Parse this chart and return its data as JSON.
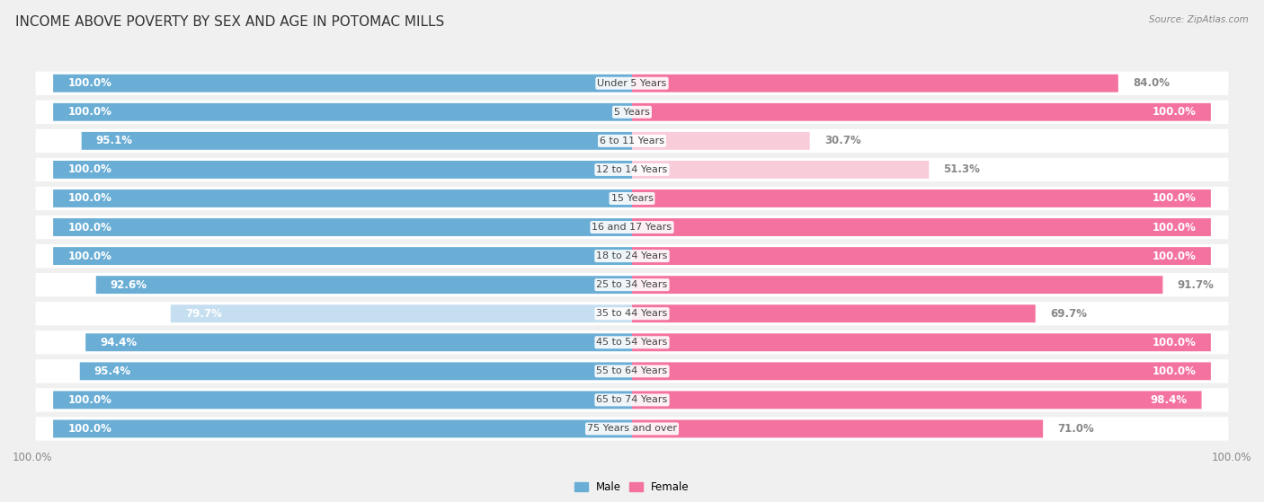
{
  "title": "INCOME ABOVE POVERTY BY SEX AND AGE IN POTOMAC MILLS",
  "source": "Source: ZipAtlas.com",
  "categories": [
    "Under 5 Years",
    "5 Years",
    "6 to 11 Years",
    "12 to 14 Years",
    "15 Years",
    "16 and 17 Years",
    "18 to 24 Years",
    "25 to 34 Years",
    "35 to 44 Years",
    "45 to 54 Years",
    "55 to 64 Years",
    "65 to 74 Years",
    "75 Years and over"
  ],
  "male": [
    100.0,
    100.0,
    95.1,
    100.0,
    100.0,
    100.0,
    100.0,
    92.6,
    79.7,
    94.4,
    95.4,
    100.0,
    100.0
  ],
  "female": [
    84.0,
    100.0,
    30.7,
    51.3,
    100.0,
    100.0,
    100.0,
    91.7,
    69.7,
    100.0,
    100.0,
    98.4,
    71.0
  ],
  "male_color": "#6aaed6",
  "male_color_light": "#c6dff0",
  "female_color": "#f472a0",
  "female_color_light": "#f9ccd9",
  "male_label": "Male",
  "female_label": "Female",
  "bar_height": 0.62,
  "row_bg_color": "#ebebeb",
  "background_color": "#f0f0f0",
  "title_fontsize": 11,
  "label_fontsize": 8.5,
  "tick_fontsize": 8.5,
  "male_light_threshold": 85,
  "female_light_threshold": 55
}
